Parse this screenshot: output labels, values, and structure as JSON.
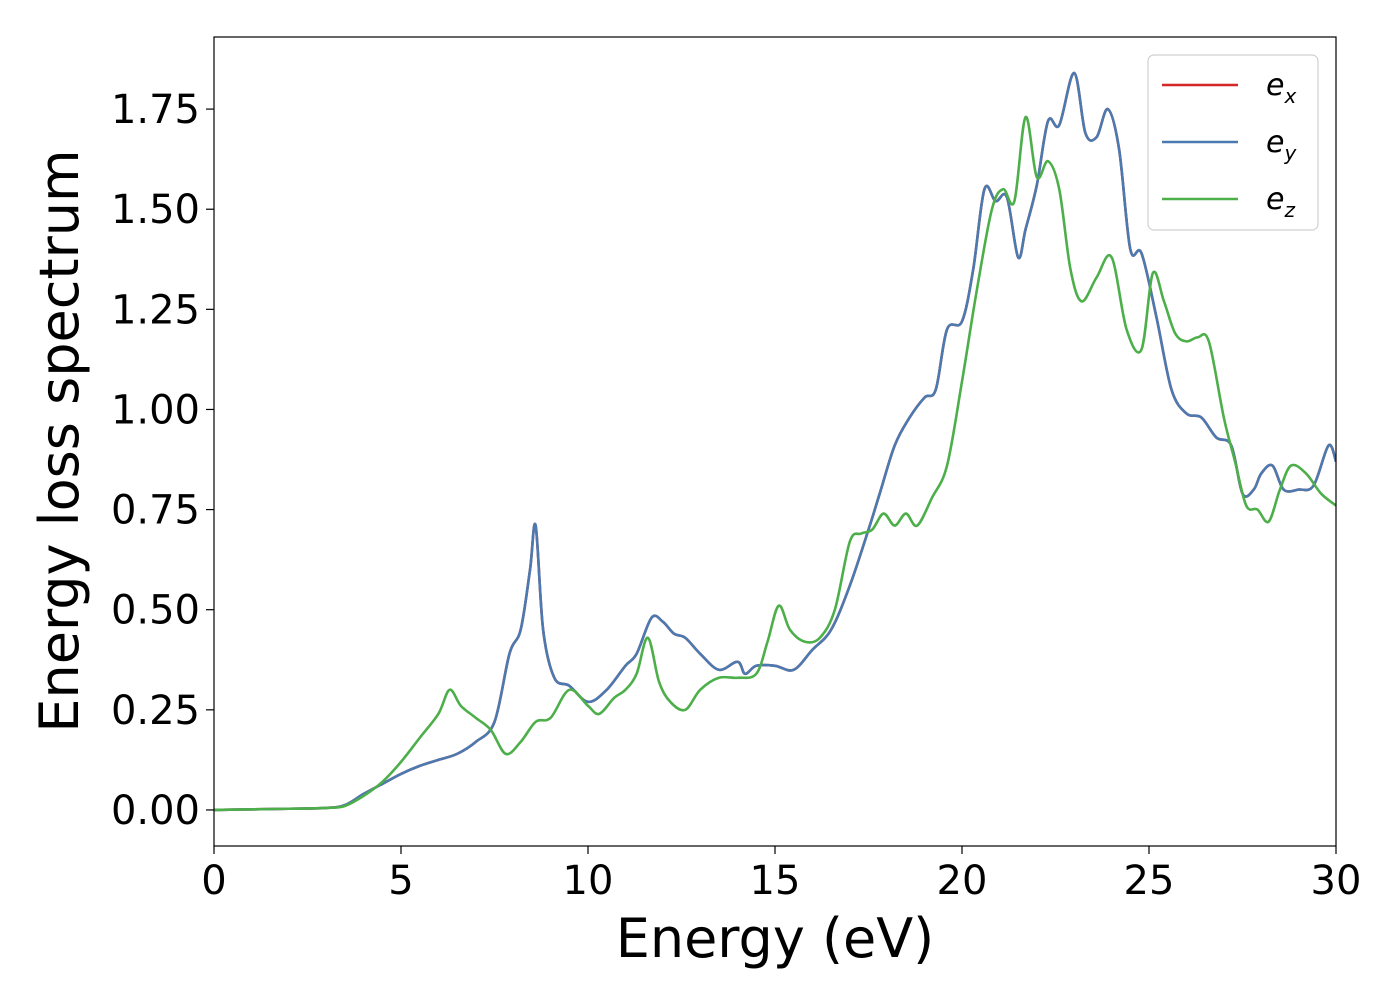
{
  "chart_data": {
    "type": "line",
    "xlabel": "Energy (eV)",
    "ylabel": "Energy loss spectrum",
    "xlim": [
      0,
      30
    ],
    "ylim": [
      -0.09,
      1.93
    ],
    "xticks": [
      0,
      5,
      10,
      15,
      20,
      25,
      30
    ],
    "xtick_labels": [
      "0",
      "5",
      "10",
      "15",
      "20",
      "25",
      "30"
    ],
    "yticks": [
      0,
      0.25,
      0.5,
      0.75,
      1.0,
      1.25,
      1.5,
      1.75
    ],
    "ytick_labels": [
      "0.00",
      "0.25",
      "0.50",
      "0.75",
      "1.00",
      "1.25",
      "1.50",
      "1.75"
    ],
    "grid": false,
    "legend_position": "top-right",
    "series": [
      {
        "name": "e",
        "subscript": "x",
        "color": "#d62728",
        "x": [
          0,
          2,
          3,
          3.5,
          4,
          4.5,
          5,
          5.5,
          6,
          6.5,
          7,
          7.5,
          7.9,
          8.2,
          8.45,
          8.6,
          8.8,
          9.1,
          9.5,
          10,
          10.5,
          11,
          11.3,
          11.7,
          12,
          12.3,
          12.6,
          13,
          13.5,
          14,
          14.2,
          14.5,
          15,
          15.5,
          16,
          16.5,
          17,
          17.5,
          17.8,
          18.2,
          18.6,
          19,
          19.3,
          19.6,
          20,
          20.3,
          20.6,
          20.9,
          21.2,
          21.5,
          21.7,
          22,
          22.3,
          22.6,
          23,
          23.3,
          23.6,
          23.9,
          24.2,
          24.5,
          24.8,
          25.2,
          25.6,
          26,
          26.4,
          26.8,
          27.2,
          27.5,
          27.8,
          28,
          28.3,
          28.6,
          29,
          29.4,
          29.8,
          30
        ],
        "y": [
          0,
          0.003,
          0.005,
          0.012,
          0.04,
          0.065,
          0.09,
          0.11,
          0.125,
          0.14,
          0.17,
          0.22,
          0.39,
          0.45,
          0.6,
          0.71,
          0.45,
          0.33,
          0.31,
          0.27,
          0.3,
          0.36,
          0.39,
          0.48,
          0.47,
          0.44,
          0.43,
          0.39,
          0.35,
          0.37,
          0.34,
          0.36,
          0.36,
          0.35,
          0.4,
          0.45,
          0.56,
          0.7,
          0.79,
          0.91,
          0.98,
          1.03,
          1.05,
          1.2,
          1.22,
          1.35,
          1.55,
          1.52,
          1.53,
          1.38,
          1.45,
          1.56,
          1.72,
          1.71,
          1.84,
          1.69,
          1.68,
          1.75,
          1.65,
          1.4,
          1.39,
          1.23,
          1.05,
          0.99,
          0.98,
          0.93,
          0.91,
          0.79,
          0.8,
          0.84,
          0.86,
          0.8,
          0.8,
          0.81,
          0.91,
          0.87
        ]
      },
      {
        "name": "e",
        "subscript": "y",
        "color": "#4a7ab0",
        "x": [
          0,
          2,
          3,
          3.5,
          4,
          4.5,
          5,
          5.5,
          6,
          6.5,
          7,
          7.5,
          7.9,
          8.2,
          8.45,
          8.6,
          8.8,
          9.1,
          9.5,
          10,
          10.5,
          11,
          11.3,
          11.7,
          12,
          12.3,
          12.6,
          13,
          13.5,
          14,
          14.2,
          14.5,
          15,
          15.5,
          16,
          16.5,
          17,
          17.5,
          17.8,
          18.2,
          18.6,
          19,
          19.3,
          19.6,
          20,
          20.3,
          20.6,
          20.9,
          21.2,
          21.5,
          21.7,
          22,
          22.3,
          22.6,
          23,
          23.3,
          23.6,
          23.9,
          24.2,
          24.5,
          24.8,
          25.2,
          25.6,
          26,
          26.4,
          26.8,
          27.2,
          27.5,
          27.8,
          28,
          28.3,
          28.6,
          29,
          29.4,
          29.8,
          30
        ],
        "y": [
          0,
          0.003,
          0.005,
          0.012,
          0.04,
          0.065,
          0.09,
          0.11,
          0.125,
          0.14,
          0.17,
          0.22,
          0.39,
          0.45,
          0.6,
          0.71,
          0.45,
          0.33,
          0.31,
          0.27,
          0.3,
          0.36,
          0.39,
          0.48,
          0.47,
          0.44,
          0.43,
          0.39,
          0.35,
          0.37,
          0.34,
          0.36,
          0.36,
          0.35,
          0.4,
          0.45,
          0.56,
          0.7,
          0.79,
          0.91,
          0.98,
          1.03,
          1.05,
          1.2,
          1.22,
          1.35,
          1.55,
          1.52,
          1.53,
          1.38,
          1.45,
          1.56,
          1.72,
          1.71,
          1.84,
          1.69,
          1.68,
          1.75,
          1.65,
          1.4,
          1.39,
          1.23,
          1.05,
          0.99,
          0.98,
          0.93,
          0.91,
          0.79,
          0.8,
          0.84,
          0.86,
          0.8,
          0.8,
          0.81,
          0.91,
          0.87
        ]
      },
      {
        "name": "e",
        "subscript": "z",
        "color": "#4daf4a",
        "x": [
          0,
          2,
          3,
          3.5,
          4,
          4.5,
          5,
          5.5,
          6,
          6.3,
          6.6,
          7,
          7.4,
          7.8,
          8.2,
          8.6,
          9,
          9.5,
          10,
          10.3,
          10.7,
          11,
          11.3,
          11.6,
          11.9,
          12.2,
          12.6,
          13,
          13.5,
          14,
          14.5,
          14.8,
          15.1,
          15.4,
          15.8,
          16.2,
          16.6,
          17,
          17.3,
          17.6,
          17.9,
          18.2,
          18.5,
          18.8,
          19.2,
          19.6,
          20,
          20.4,
          20.8,
          21.1,
          21.4,
          21.7,
          22,
          22.3,
          22.6,
          22.9,
          23.2,
          23.6,
          24,
          24.4,
          24.8,
          25.1,
          25.4,
          25.7,
          26,
          26.3,
          26.6,
          27,
          27.3,
          27.6,
          27.9,
          28.2,
          28.5,
          28.8,
          29.2,
          29.6,
          30
        ],
        "y": [
          0,
          0.003,
          0.005,
          0.01,
          0.035,
          0.07,
          0.12,
          0.18,
          0.24,
          0.3,
          0.26,
          0.23,
          0.2,
          0.14,
          0.17,
          0.22,
          0.23,
          0.3,
          0.26,
          0.24,
          0.28,
          0.3,
          0.34,
          0.43,
          0.32,
          0.27,
          0.25,
          0.3,
          0.33,
          0.33,
          0.34,
          0.42,
          0.51,
          0.45,
          0.42,
          0.43,
          0.5,
          0.67,
          0.69,
          0.7,
          0.74,
          0.71,
          0.74,
          0.71,
          0.78,
          0.86,
          1.07,
          1.3,
          1.5,
          1.55,
          1.52,
          1.73,
          1.58,
          1.62,
          1.55,
          1.35,
          1.27,
          1.33,
          1.38,
          1.2,
          1.15,
          1.34,
          1.27,
          1.19,
          1.17,
          1.18,
          1.17,
          0.98,
          0.87,
          0.76,
          0.75,
          0.72,
          0.8,
          0.86,
          0.84,
          0.79,
          0.76
        ]
      }
    ]
  }
}
